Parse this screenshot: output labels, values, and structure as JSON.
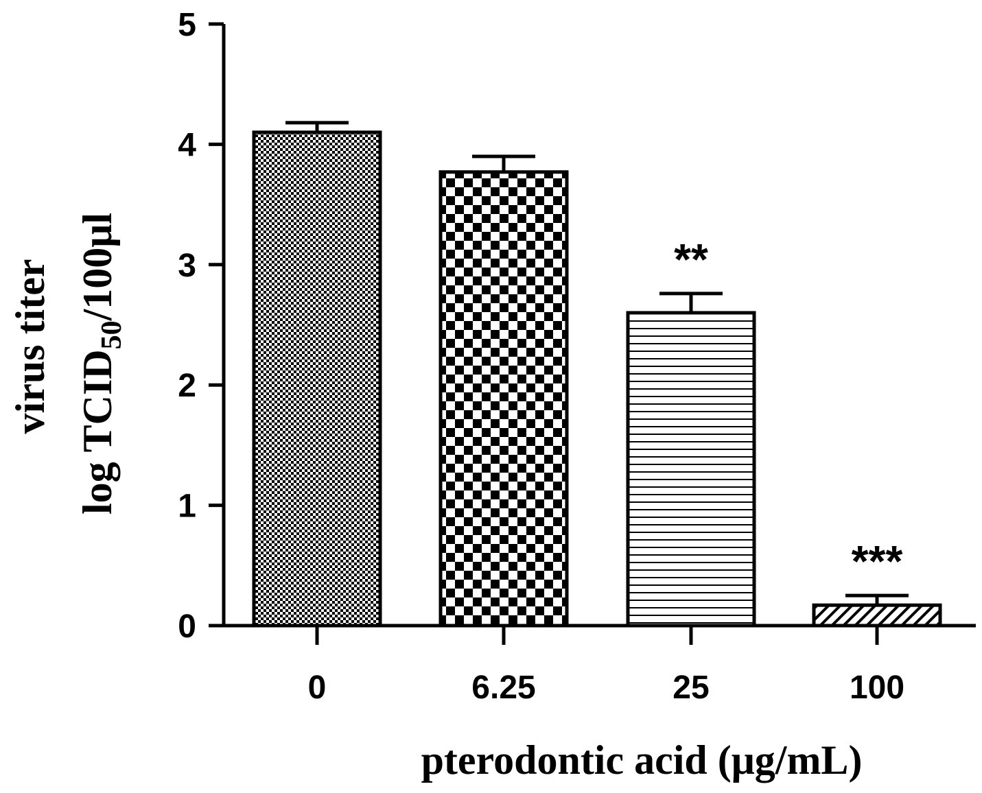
{
  "chart_data": {
    "type": "bar",
    "categories": [
      "0",
      "6.25",
      "25",
      "100"
    ],
    "values": [
      4.1,
      3.77,
      2.6,
      0.17
    ],
    "errors": [
      0.08,
      0.13,
      0.16,
      0.08
    ],
    "significance": [
      "",
      "",
      "**",
      "***"
    ],
    "patterns": [
      "fine-checker",
      "coarse-checker",
      "horizontal-lines",
      "diagonal-hatch"
    ],
    "title": "",
    "xlabel": "pterodontic acid (μg/mL)",
    "ylabel_line1": "virus titer",
    "ylabel_line2_prefix": "log TCID",
    "ylabel_line2_subscript": "50",
    "ylabel_line2_suffix": "/100μl",
    "ylim": [
      0,
      5
    ],
    "yticks": [
      "0",
      "1",
      "2",
      "3",
      "4",
      "5"
    ],
    "grid": false,
    "bar_fill_color": "#000000",
    "background_color": "#ffffff"
  }
}
